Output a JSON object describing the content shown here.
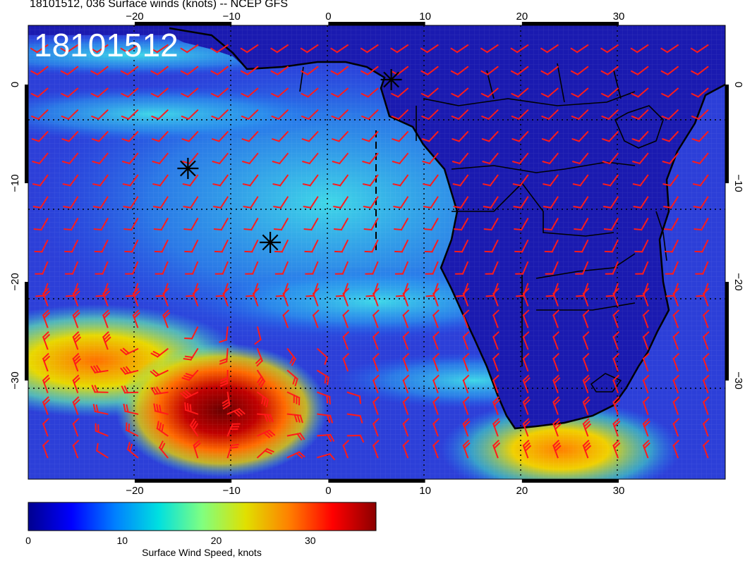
{
  "title": "18101512, 036 Surface winds (knots) -- NCEP GFS",
  "stamp": "18101512",
  "map": {
    "lon_range": [
      -31,
      41
    ],
    "lat_range": [
      -40,
      6
    ],
    "lon_ticks": [
      -20,
      -10,
      0,
      10,
      20,
      30
    ],
    "lat_ticks": [
      0,
      -10,
      -20,
      -30
    ],
    "lon_tick_labels": [
      "−20",
      "−10",
      "0",
      "10",
      "20",
      "30"
    ],
    "lat_tick_labels": [
      "0",
      "−10",
      "−20",
      "−30"
    ],
    "ocean_color": "#2c3fd8",
    "land_color": "#1a1ab0",
    "barb_color": "#ff1a1a",
    "coast_color": "#000000"
  },
  "storm_markers": [
    {
      "name": "storm-marker-1",
      "lon": 6.5,
      "lat": 0.5
    },
    {
      "name": "storm-marker-2",
      "lon": -14.5,
      "lat": -8.5
    },
    {
      "name": "storm-marker-3",
      "lon": -6,
      "lat": -16
    }
  ],
  "colorbar": {
    "label": "Surface Wind Speed, knots",
    "range": [
      0,
      37
    ],
    "ticks": [
      0,
      10,
      20,
      30
    ],
    "tick_labels": [
      "0",
      "10",
      "20",
      "30"
    ],
    "colors": [
      "#00008f",
      "#0000ff",
      "#0080ff",
      "#00e0e0",
      "#80ff80",
      "#e0e000",
      "#ff8000",
      "#ff0000",
      "#8b0000"
    ]
  },
  "wind_regions": [
    {
      "name": "high-wind-low-center",
      "lon": -11,
      "lat": -33,
      "speed": 35
    },
    {
      "name": "southwest-jet",
      "lon": -24,
      "lat": -28,
      "speed": 28
    },
    {
      "name": "south-african-jet",
      "lon": 24,
      "lat": -37,
      "speed": 27
    },
    {
      "name": "south-atlantic-trades",
      "lon": 0,
      "lat": -12,
      "speed": 15
    }
  ]
}
